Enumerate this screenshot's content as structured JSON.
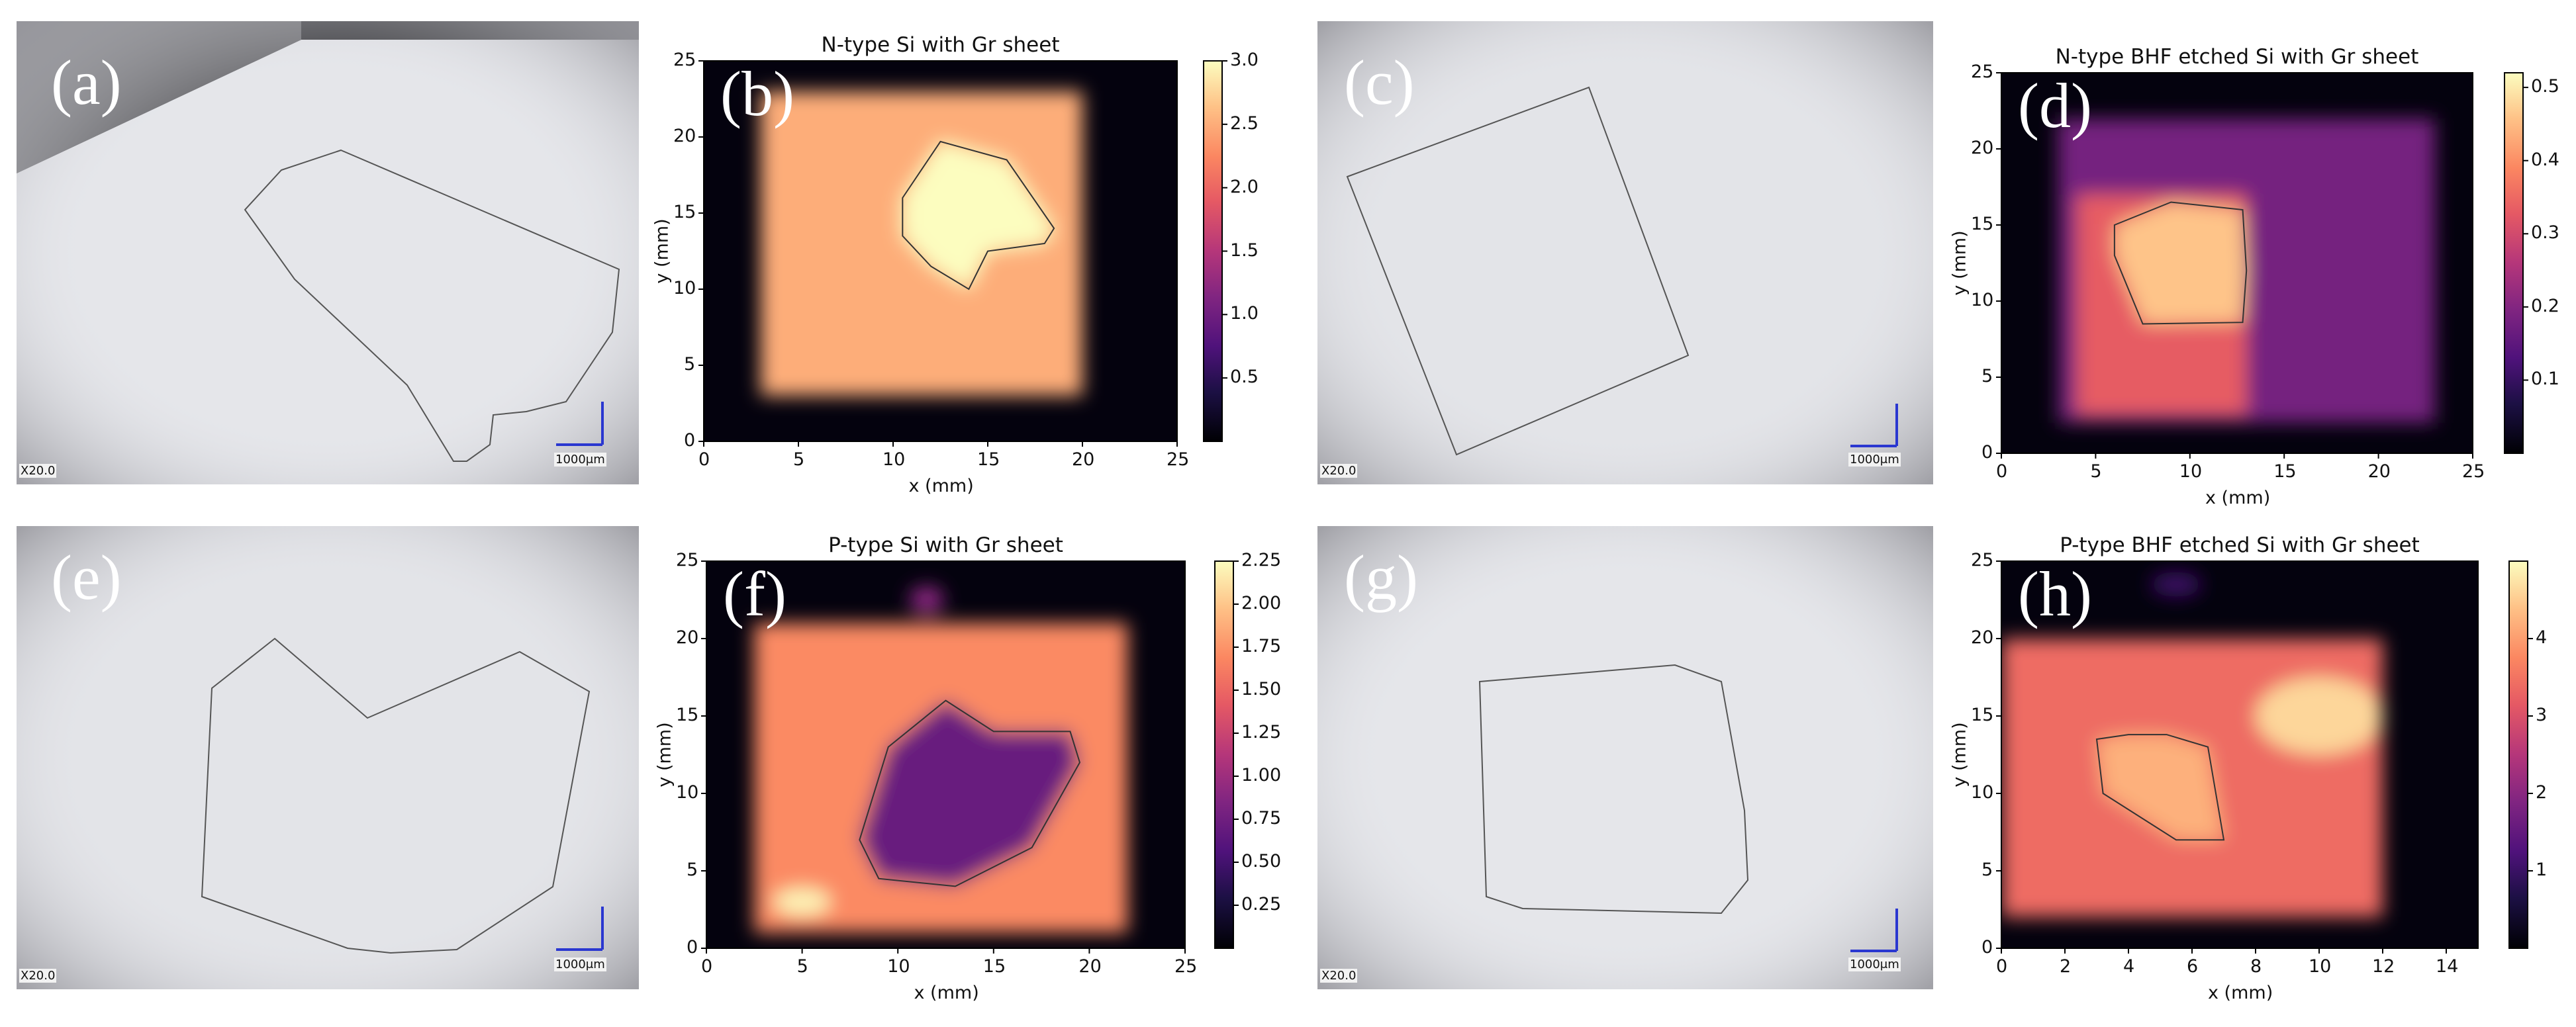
{
  "figure": {
    "micrographs": [
      {
        "id": "a",
        "label": "(a)",
        "magnification": "X20.0",
        "scalebar": "1000μm"
      },
      {
        "id": "c",
        "label": "(c)",
        "magnification": "X20.0",
        "scalebar": "1000μm"
      },
      {
        "id": "e",
        "label": "(e)",
        "magnification": "X20.0",
        "scalebar": "1000μm"
      },
      {
        "id": "g",
        "label": "(g)",
        "magnification": "X20.0",
        "scalebar": "1000μm"
      }
    ],
    "maps": [
      {
        "id": "b",
        "label": "(b)",
        "title": "N-type Si with Gr sheet",
        "xlabel": "x (mm)",
        "ylabel": "y (mm)",
        "xticks": [
          "0",
          "5",
          "10",
          "15",
          "20",
          "25"
        ],
        "yticks": [
          "0",
          "5",
          "10",
          "15",
          "20",
          "25"
        ],
        "cbticks": [
          "0.5",
          "1.0",
          "1.5",
          "2.0",
          "2.5",
          "3.0"
        ]
      },
      {
        "id": "d",
        "label": "(d)",
        "title": "N-type BHF etched Si with Gr sheet",
        "xlabel": "x (mm)",
        "ylabel": "y (mm)",
        "xticks": [
          "0",
          "5",
          "10",
          "15",
          "20",
          "25"
        ],
        "yticks": [
          "0",
          "5",
          "10",
          "15",
          "20",
          "25"
        ],
        "cbticks": [
          "0.1",
          "0.2",
          "0.3",
          "0.4",
          "0.5"
        ]
      },
      {
        "id": "f",
        "label": "(f)",
        "title": "P-type Si with Gr sheet",
        "xlabel": "x (mm)",
        "ylabel": "y (mm)",
        "xticks": [
          "0",
          "5",
          "10",
          "15",
          "20",
          "25"
        ],
        "yticks": [
          "0",
          "5",
          "10",
          "15",
          "20",
          "25"
        ],
        "cbticks": [
          "0.25",
          "0.50",
          "0.75",
          "1.00",
          "1.25",
          "1.50",
          "1.75",
          "2.00",
          "2.25"
        ]
      },
      {
        "id": "h",
        "label": "(h)",
        "title": "P-type BHF etched Si with Gr sheet",
        "xlabel": "x (mm)",
        "ylabel": "y (mm)",
        "xticks": [
          "0",
          "2",
          "4",
          "6",
          "8",
          "10",
          "12",
          "14"
        ],
        "yticks": [
          "0",
          "5",
          "10",
          "15",
          "20",
          "25"
        ],
        "cbticks": [
          "1",
          "2",
          "3",
          "4"
        ]
      }
    ]
  },
  "chart_data": [
    {
      "type": "heatmap",
      "panel": "b",
      "title": "N-type Si with Gr sheet",
      "xlabel": "x (mm)",
      "ylabel": "y (mm)",
      "xlim": [
        0,
        25
      ],
      "ylim": [
        0,
        25
      ],
      "colorbar_range": [
        0,
        3.0
      ],
      "colormap": "magma",
      "regions": [
        {
          "shape": "rect",
          "x": [
            3,
            20
          ],
          "y": [
            3,
            23
          ],
          "value": 2.5
        },
        {
          "shape": "polygon",
          "x": [
            10.5,
            12.5,
            16,
            18.5,
            18,
            15,
            14,
            12,
            10.5
          ],
          "y": [
            16,
            19.7,
            18.5,
            14,
            13,
            12.5,
            10,
            11.5,
            13.5
          ],
          "value": 3.0
        }
      ],
      "outline": {
        "x": [
          10.5,
          12.5,
          16,
          18.5,
          18,
          15,
          14,
          12,
          10.5
        ],
        "y": [
          16,
          19.7,
          18.5,
          14,
          13,
          12.5,
          10,
          11.5,
          13.5
        ]
      }
    },
    {
      "type": "heatmap",
      "panel": "d",
      "title": "N-type BHF etched Si with Gr sheet",
      "xlabel": "x (mm)",
      "ylabel": "y (mm)",
      "xlim": [
        0,
        25
      ],
      "ylim": [
        0,
        25
      ],
      "colorbar_range": [
        0,
        0.52
      ],
      "colormap": "magma",
      "regions": [
        {
          "shape": "rect",
          "x": [
            3,
            23
          ],
          "y": [
            2,
            22
          ],
          "value": 0.18
        },
        {
          "shape": "rect",
          "x": [
            4,
            13
          ],
          "y": [
            2.5,
            17
          ],
          "value": 0.33
        },
        {
          "shape": "polygon",
          "x": [
            6,
            9,
            12.8,
            13,
            12.8,
            7.5,
            6
          ],
          "y": [
            15,
            16.5,
            16,
            12,
            8.6,
            8.5,
            13
          ],
          "value": 0.46
        }
      ],
      "outline": {
        "x": [
          6,
          9,
          12.8,
          13,
          12.8,
          7.5,
          6
        ],
        "y": [
          15,
          16.5,
          16,
          12,
          8.6,
          8.5,
          13
        ]
      }
    },
    {
      "type": "heatmap",
      "panel": "f",
      "title": "P-type Si with Gr sheet",
      "xlabel": "x (mm)",
      "ylabel": "y (mm)",
      "xlim": [
        0,
        25
      ],
      "ylim": [
        0,
        25
      ],
      "colorbar_range": [
        0,
        2.25
      ],
      "colormap": "magma",
      "regions": [
        {
          "shape": "rect",
          "x": [
            2.5,
            22
          ],
          "y": [
            1,
            21
          ],
          "value": 1.7
        },
        {
          "shape": "polygon",
          "x": [
            12.5,
            15,
            19,
            19.5,
            17,
            13,
            9,
            8,
            9.5
          ],
          "y": [
            16,
            14,
            14,
            12,
            6.5,
            4,
            4.5,
            7,
            13
          ],
          "value": 0.7
        },
        {
          "shape": "ellipse",
          "cx": 5,
          "cy": 3,
          "rx": 1.5,
          "ry": 0.9,
          "value": 2.2
        },
        {
          "shape": "ellipse",
          "cx": 11.5,
          "cy": 22.5,
          "rx": 0.9,
          "ry": 0.9,
          "value": 0.9
        }
      ],
      "outline": {
        "x": [
          12.5,
          15,
          19,
          19.5,
          17,
          13,
          9,
          8,
          9.5
        ],
        "y": [
          16,
          14,
          14,
          12,
          6.5,
          4,
          4.5,
          7,
          13
        ]
      }
    },
    {
      "type": "heatmap",
      "panel": "h",
      "title": "P-type BHF etched Si with Gr sheet",
      "xlabel": "x (mm)",
      "ylabel": "y (mm)",
      "xlim": [
        0,
        15
      ],
      "ylim": [
        0,
        25
      ],
      "colorbar_range": [
        0,
        5
      ],
      "colormap": "magma",
      "regions": [
        {
          "shape": "rect",
          "x": [
            0,
            12
          ],
          "y": [
            2,
            20
          ],
          "value": 3.4
        },
        {
          "shape": "ellipse",
          "cx": 10,
          "cy": 15,
          "rx": 2,
          "ry": 2.5,
          "value": 4.6
        },
        {
          "shape": "polygon",
          "x": [
            3,
            3.2,
            5.5,
            7,
            6.5,
            5.2,
            4
          ],
          "y": [
            13.5,
            10,
            7,
            7,
            13,
            13.8,
            13.8
          ],
          "value": 4.2
        },
        {
          "shape": "ellipse",
          "cx": 5.5,
          "cy": 23.5,
          "rx": 0.8,
          "ry": 0.8,
          "value": 1.0
        }
      ],
      "outline": {
        "x": [
          3,
          3.2,
          5.5,
          7,
          6.5,
          5.2,
          4
        ],
        "y": [
          13.5,
          10,
          7,
          7,
          13,
          13.8,
          13.8
        ]
      }
    }
  ]
}
